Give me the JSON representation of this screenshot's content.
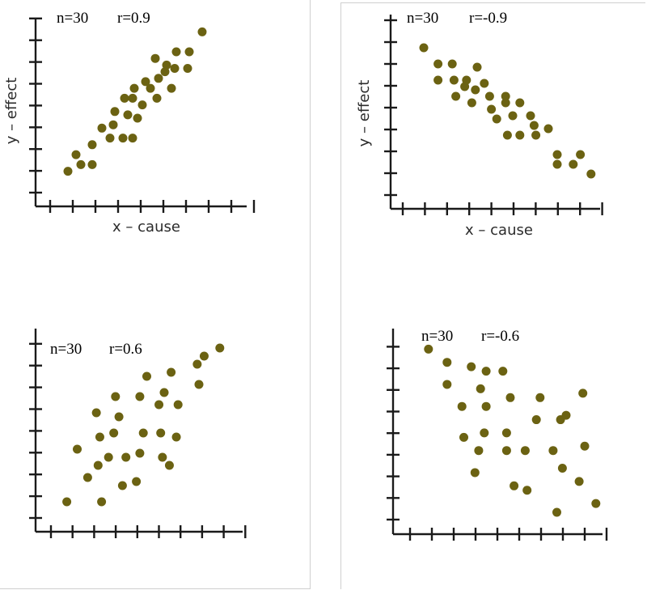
{
  "chart_data": [
    {
      "type": "scatter",
      "n_label": "n=30",
      "r_label": "r=0.9",
      "xlabel": "x – cause",
      "ylabel": "y – effect",
      "x_ticks": 10,
      "y_ticks": 9,
      "points": [
        [
          0.5,
          0.4
        ],
        [
          1.0,
          0.9
        ],
        [
          1.3,
          0.6
        ],
        [
          2.0,
          1.2
        ],
        [
          2.0,
          0.6
        ],
        [
          2.6,
          1.7
        ],
        [
          3.1,
          1.4
        ],
        [
          3.3,
          1.8
        ],
        [
          3.4,
          2.2
        ],
        [
          3.9,
          1.4
        ],
        [
          4.0,
          2.6
        ],
        [
          4.2,
          2.1
        ],
        [
          4.5,
          1.4
        ],
        [
          4.5,
          2.6
        ],
        [
          4.6,
          2.9
        ],
        [
          4.8,
          2.0
        ],
        [
          5.1,
          2.4
        ],
        [
          5.3,
          3.1
        ],
        [
          5.6,
          2.9
        ],
        [
          5.9,
          3.8
        ],
        [
          6.0,
          2.6
        ],
        [
          6.1,
          3.2
        ],
        [
          6.5,
          3.4
        ],
        [
          6.6,
          3.6
        ],
        [
          6.9,
          2.9
        ],
        [
          7.1,
          3.5
        ],
        [
          7.2,
          4.0
        ],
        [
          7.9,
          3.5
        ],
        [
          8.0,
          4.0
        ],
        [
          8.8,
          4.6
        ]
      ]
    },
    {
      "type": "scatter",
      "n_label": "n=30",
      "r_label": "r=-0.9",
      "xlabel": "x – cause",
      "ylabel": "y – effect",
      "x_ticks": 10,
      "y_ticks": 9,
      "points": [
        [
          0.5,
          4.3
        ],
        [
          1.3,
          3.8
        ],
        [
          1.3,
          3.3
        ],
        [
          2.1,
          3.8
        ],
        [
          2.2,
          3.3
        ],
        [
          2.3,
          2.8
        ],
        [
          2.8,
          3.1
        ],
        [
          2.9,
          3.3
        ],
        [
          3.2,
          2.6
        ],
        [
          3.4,
          3.0
        ],
        [
          3.5,
          3.7
        ],
        [
          3.9,
          3.2
        ],
        [
          4.2,
          2.8
        ],
        [
          4.3,
          2.4
        ],
        [
          4.6,
          2.1
        ],
        [
          5.1,
          2.8
        ],
        [
          5.1,
          2.6
        ],
        [
          5.2,
          1.6
        ],
        [
          5.5,
          2.2
        ],
        [
          5.9,
          2.6
        ],
        [
          5.9,
          1.6
        ],
        [
          6.5,
          2.2
        ],
        [
          6.7,
          1.9
        ],
        [
          6.8,
          1.6
        ],
        [
          7.5,
          1.8
        ],
        [
          8.0,
          1.0
        ],
        [
          8.0,
          0.7
        ],
        [
          8.9,
          0.7
        ],
        [
          9.3,
          1.0
        ],
        [
          9.9,
          0.4
        ]
      ]
    },
    {
      "type": "scatter",
      "n_label": "n=30",
      "r_label": "r=0.6",
      "xlabel": "",
      "ylabel": "",
      "x_ticks": 10,
      "y_ticks": 9,
      "points": [
        [
          0.4,
          0.2
        ],
        [
          1.0,
          1.5
        ],
        [
          1.6,
          0.8
        ],
        [
          2.1,
          2.4
        ],
        [
          2.2,
          1.1
        ],
        [
          2.3,
          1.8
        ],
        [
          2.4,
          0.2
        ],
        [
          2.8,
          1.3
        ],
        [
          3.1,
          1.9
        ],
        [
          3.2,
          2.8
        ],
        [
          3.4,
          2.3
        ],
        [
          3.6,
          0.6
        ],
        [
          3.8,
          1.3
        ],
        [
          4.4,
          0.7
        ],
        [
          4.6,
          2.8
        ],
        [
          4.6,
          1.4
        ],
        [
          4.8,
          1.9
        ],
        [
          5.0,
          3.3
        ],
        [
          5.7,
          2.6
        ],
        [
          5.8,
          1.9
        ],
        [
          5.9,
          1.3
        ],
        [
          6.0,
          2.9
        ],
        [
          6.3,
          1.1
        ],
        [
          6.4,
          3.4
        ],
        [
          6.7,
          1.8
        ],
        [
          6.8,
          2.6
        ],
        [
          7.9,
          3.6
        ],
        [
          8.0,
          3.1
        ],
        [
          8.3,
          3.8
        ],
        [
          9.2,
          4.0
        ]
      ]
    },
    {
      "type": "scatter",
      "n_label": "n=30",
      "r_label": "r=-0.6",
      "xlabel": "",
      "ylabel": "",
      "x_ticks": 10,
      "y_ticks": 9,
      "points": [
        [
          0.6,
          3.7
        ],
        [
          1.6,
          3.4
        ],
        [
          1.6,
          2.9
        ],
        [
          2.4,
          2.4
        ],
        [
          2.5,
          1.7
        ],
        [
          2.9,
          3.3
        ],
        [
          3.1,
          0.9
        ],
        [
          3.3,
          1.4
        ],
        [
          3.4,
          2.8
        ],
        [
          3.6,
          1.8
        ],
        [
          3.7,
          3.2
        ],
        [
          3.7,
          2.4
        ],
        [
          4.6,
          3.2
        ],
        [
          4.8,
          1.8
        ],
        [
          4.8,
          1.4
        ],
        [
          5.0,
          2.6
        ],
        [
          5.2,
          0.6
        ],
        [
          5.8,
          1.4
        ],
        [
          5.9,
          0.5
        ],
        [
          6.4,
          2.1
        ],
        [
          6.6,
          2.6
        ],
        [
          7.3,
          1.4
        ],
        [
          7.5,
          0.0
        ],
        [
          7.7,
          2.1
        ],
        [
          7.8,
          1.0
        ],
        [
          8.0,
          2.2
        ],
        [
          8.7,
          0.7
        ],
        [
          9.0,
          1.5
        ],
        [
          9.6,
          0.2
        ],
        [
          8.9,
          2.7
        ]
      ]
    }
  ]
}
